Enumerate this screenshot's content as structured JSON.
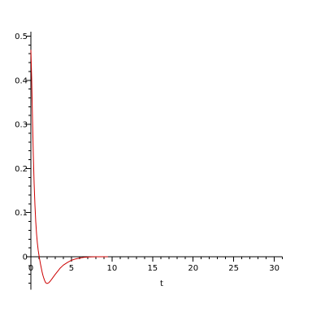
{
  "chart_data": {
    "type": "line",
    "title": "",
    "xlabel": "t",
    "ylabel": "",
    "xlim": [
      0,
      31
    ],
    "ylim": [
      -0.075,
      0.51
    ],
    "x_ticks": [
      0,
      5,
      10,
      15,
      20,
      25,
      30
    ],
    "x_tick_labels": [
      "0",
      "5",
      "10",
      "15",
      "20",
      "25",
      "30"
    ],
    "y_ticks": [
      0,
      0.1,
      0.2,
      0.3,
      0.4,
      0.5
    ],
    "y_tick_labels": [
      "0",
      "0.1",
      "0.2",
      "0.3",
      "0.4",
      "0.5"
    ],
    "grid": false,
    "legend": "none",
    "line_color": "#cc0000",
    "series": [
      {
        "x": [
          0.0,
          0.1,
          0.2,
          0.3,
          0.4,
          0.5,
          0.6,
          0.7,
          0.8,
          0.9,
          1.0,
          1.1,
          1.2,
          1.3,
          1.4,
          1.5,
          1.6,
          1.7,
          1.8,
          1.9,
          2.0,
          2.2,
          2.4,
          2.6,
          2.8,
          3.0,
          3.3,
          3.6,
          4.0,
          4.5,
          5.0,
          5.5,
          6.0,
          6.5,
          7.0,
          7.5,
          8.0,
          8.5,
          9.0,
          9.5
        ],
        "y": [
          0.469,
          0.403,
          0.313,
          0.232,
          0.167,
          0.118,
          0.08,
          0.052,
          0.031,
          0.015,
          0.003,
          -0.008,
          -0.018,
          -0.027,
          -0.036,
          -0.043,
          -0.049,
          -0.054,
          -0.058,
          -0.06,
          -0.0605,
          -0.059,
          -0.055,
          -0.05,
          -0.045,
          -0.04,
          -0.033,
          -0.026,
          -0.019,
          -0.013,
          -0.008,
          -0.005,
          -0.003,
          -0.0015,
          -0.0007,
          -0.0003,
          -0.0001,
          0.0,
          0.0,
          0.0
        ]
      }
    ]
  }
}
